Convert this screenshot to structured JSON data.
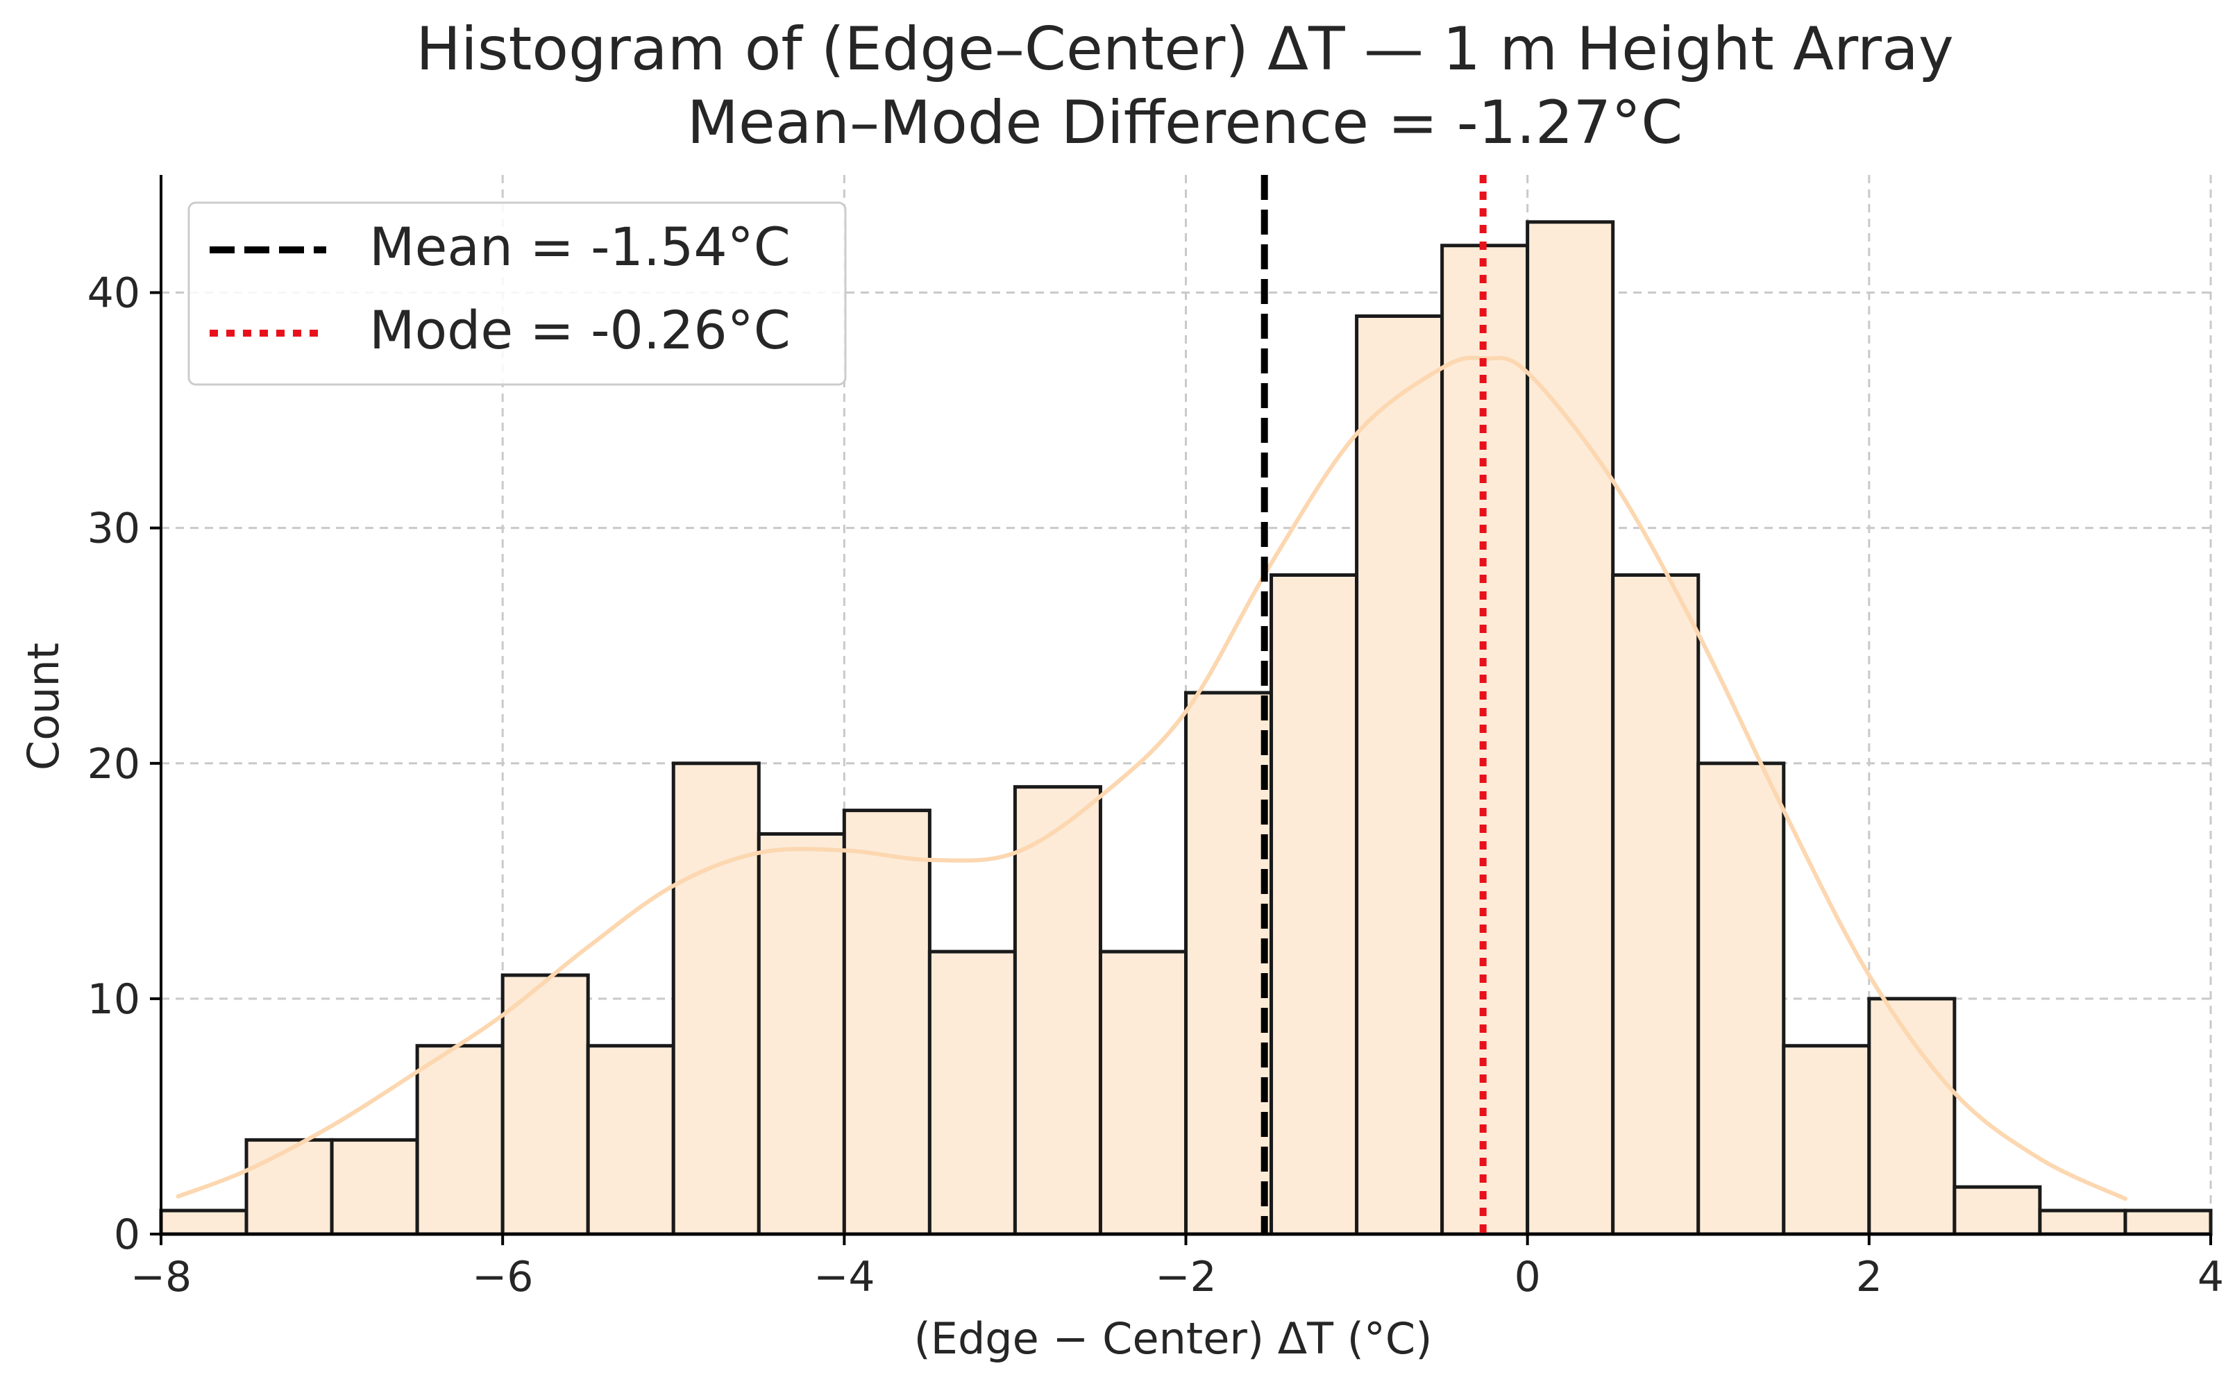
{
  "chart_data": {
    "type": "bar",
    "title": "Histogram of (Edge–Center) ΔT — 1 m Height Array",
    "subtitle": "Mean–Mode Difference = -1.27°C",
    "xlabel": "(Edge − Center) ΔT (°C)",
    "ylabel": "Count",
    "xlim": [
      -8,
      4
    ],
    "ylim": [
      0,
      45
    ],
    "xticks": [
      -8,
      -6,
      -4,
      -2,
      0,
      2,
      4
    ],
    "xtick_labels": [
      "−8",
      "−6",
      "−4",
      "−2",
      "0",
      "2",
      "4"
    ],
    "yticks": [
      0,
      10,
      20,
      30,
      40
    ],
    "ytick_labels": [
      "0",
      "10",
      "20",
      "30",
      "40"
    ],
    "grid": true,
    "bin_edges": [
      -8.0,
      -7.5,
      -7.0,
      -6.5,
      -6.0,
      -5.5,
      -5.0,
      -4.5,
      -4.0,
      -3.5,
      -3.0,
      -2.5,
      -2.0,
      -1.5,
      -1.0,
      -0.5,
      0.0,
      0.5,
      1.0,
      1.5,
      2.0,
      2.5,
      3.0,
      3.5,
      4.0
    ],
    "counts": [
      1,
      4,
      4,
      8,
      11,
      8,
      20,
      17,
      18,
      12,
      19,
      12,
      23,
      28,
      39,
      42,
      43,
      28,
      20,
      8,
      10,
      2,
      1,
      1
    ],
    "kde": {
      "x": [
        -7.9,
        -7.5,
        -7.0,
        -6.5,
        -6.0,
        -5.5,
        -5.0,
        -4.5,
        -4.0,
        -3.5,
        -3.0,
        -2.5,
        -2.0,
        -1.5,
        -1.0,
        -0.5,
        -0.25,
        0.0,
        0.5,
        1.0,
        1.5,
        2.0,
        2.5,
        3.0,
        3.5
      ],
      "y": [
        1.6,
        2.7,
        4.6,
        6.9,
        9.3,
        12.2,
        14.8,
        16.2,
        16.3,
        15.9,
        16.2,
        18.6,
        22.2,
        28.5,
        34.0,
        36.8,
        37.2,
        36.6,
        32.0,
        25.5,
        18.0,
        11.0,
        6.0,
        3.2,
        1.5
      ]
    },
    "reference_lines": [
      {
        "name": "Mean",
        "value": -1.54,
        "label": "Mean = -1.54°C",
        "style": "dashed",
        "color": "#000000"
      },
      {
        "name": "Mode",
        "value": -0.26,
        "label": "Mode = -0.26°C",
        "style": "dotted",
        "color": "#e8111b"
      }
    ],
    "legend_position": "top-left",
    "colors": {
      "bar_fill": "#fdebd8",
      "bar_edge": "#1a1a1a",
      "kde": "#fcd7b0",
      "grid": "#c9c9c9",
      "axis": "#000000"
    }
  }
}
